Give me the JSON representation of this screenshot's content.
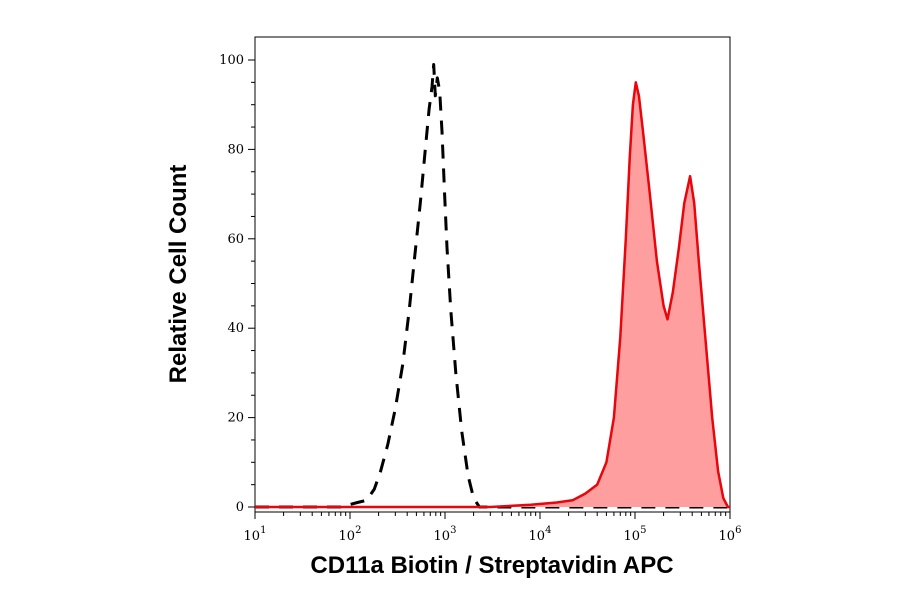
{
  "chart_data": {
    "type": "histogram",
    "xlabel": "CD11a Biotin / Streptavidin APC",
    "ylabel": "Relative Cell Count",
    "x_scale": "log",
    "xlim": [
      10,
      1000000
    ],
    "ylim": [
      0,
      100
    ],
    "x_ticks": [
      {
        "value": 10,
        "base": "10",
        "exp": "1"
      },
      {
        "value": 100,
        "base": "10",
        "exp": "2"
      },
      {
        "value": 1000,
        "base": "10",
        "exp": "3"
      },
      {
        "value": 10000,
        "base": "10",
        "exp": "4"
      },
      {
        "value": 100000,
        "base": "10",
        "exp": "5"
      },
      {
        "value": 1000000,
        "base": "10",
        "exp": "6"
      }
    ],
    "y_ticks": [
      "0",
      "20",
      "40",
      "60",
      "80",
      "100"
    ],
    "grid": false,
    "series": [
      {
        "style": "dashed",
        "color": "#000000",
        "points": [
          [
            10,
            0
          ],
          [
            80,
            0
          ],
          [
            120,
            1
          ],
          [
            150,
            1.5
          ],
          [
            180,
            4
          ],
          [
            210,
            8
          ],
          [
            250,
            14
          ],
          [
            300,
            22
          ],
          [
            360,
            32
          ],
          [
            420,
            44
          ],
          [
            480,
            56
          ],
          [
            550,
            68
          ],
          [
            620,
            80
          ],
          [
            680,
            89
          ],
          [
            730,
            94
          ],
          [
            760,
            99
          ],
          [
            790,
            92
          ],
          [
            830,
            96
          ],
          [
            880,
            93
          ],
          [
            930,
            84
          ],
          [
            990,
            70
          ],
          [
            1050,
            58
          ],
          [
            1150,
            44
          ],
          [
            1300,
            30
          ],
          [
            1500,
            17
          ],
          [
            1750,
            7
          ],
          [
            2000,
            2
          ],
          [
            2300,
            0
          ],
          [
            1000000,
            0
          ]
        ]
      },
      {
        "style": "filled",
        "color": "#e8050b",
        "fill": "#ff9e9e",
        "points": [
          [
            10,
            0
          ],
          [
            3000,
            0
          ],
          [
            8000,
            0.5
          ],
          [
            15000,
            1
          ],
          [
            22000,
            1.5
          ],
          [
            30000,
            3
          ],
          [
            40000,
            5
          ],
          [
            50000,
            10
          ],
          [
            60000,
            20
          ],
          [
            70000,
            38
          ],
          [
            80000,
            60
          ],
          [
            88000,
            78
          ],
          [
            95000,
            90
          ],
          [
            102000,
            95
          ],
          [
            110000,
            92
          ],
          [
            120000,
            85
          ],
          [
            140000,
            72
          ],
          [
            170000,
            55
          ],
          [
            200000,
            45
          ],
          [
            220000,
            42
          ],
          [
            250000,
            48
          ],
          [
            290000,
            58
          ],
          [
            330000,
            68
          ],
          [
            380000,
            74
          ],
          [
            420000,
            68
          ],
          [
            470000,
            55
          ],
          [
            550000,
            38
          ],
          [
            650000,
            20
          ],
          [
            750000,
            8
          ],
          [
            850000,
            2
          ],
          [
            950000,
            0
          ],
          [
            1000000,
            0
          ]
        ]
      }
    ]
  }
}
